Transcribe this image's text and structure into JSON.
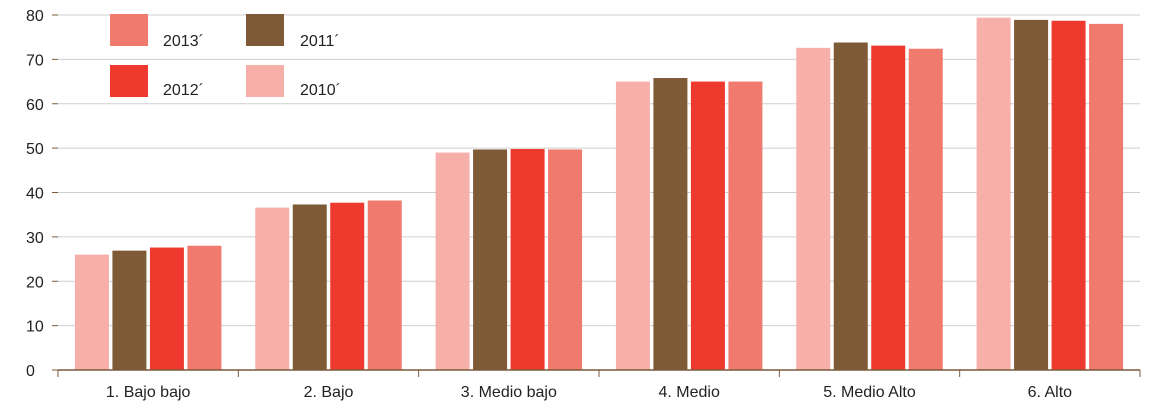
{
  "chart_data": {
    "type": "bar",
    "categories": [
      "1. Bajo bajo",
      "2. Bajo",
      "3. Medio bajo",
      "4. Medio",
      "5. Medio Alto",
      "6. Alto"
    ],
    "series": [
      {
        "name": "2010´",
        "color": "#F7AFAA",
        "values": [
          26,
          36.6,
          49,
          65,
          72.6,
          79.4
        ]
      },
      {
        "name": "2011´",
        "color": "#7E5A36",
        "values": [
          26.9,
          37.3,
          49.7,
          65.8,
          73.8,
          78.9
        ]
      },
      {
        "name": "2012´",
        "color": "#EE3A2E",
        "values": [
          27.6,
          37.7,
          49.8,
          65,
          73.1,
          78.7
        ]
      },
      {
        "name": "2013´",
        "color": "#F07A6E",
        "values": [
          28,
          38.2,
          49.7,
          65,
          72.4,
          78
        ]
      }
    ],
    "yticks": [
      0,
      10,
      20,
      30,
      40,
      50,
      60,
      70,
      80
    ],
    "ylim": [
      0,
      80
    ],
    "grid": true,
    "legend": {
      "placement": "top-left",
      "items": [
        {
          "label": "2013´",
          "color": "#F07A6E"
        },
        {
          "label": "2011´",
          "color": "#7E5A36"
        },
        {
          "label": "2012´",
          "color": "#EE3A2E"
        },
        {
          "label": "2010´",
          "color": "#F7AFAA"
        }
      ]
    },
    "title": "",
    "xlabel": "",
    "ylabel": ""
  }
}
